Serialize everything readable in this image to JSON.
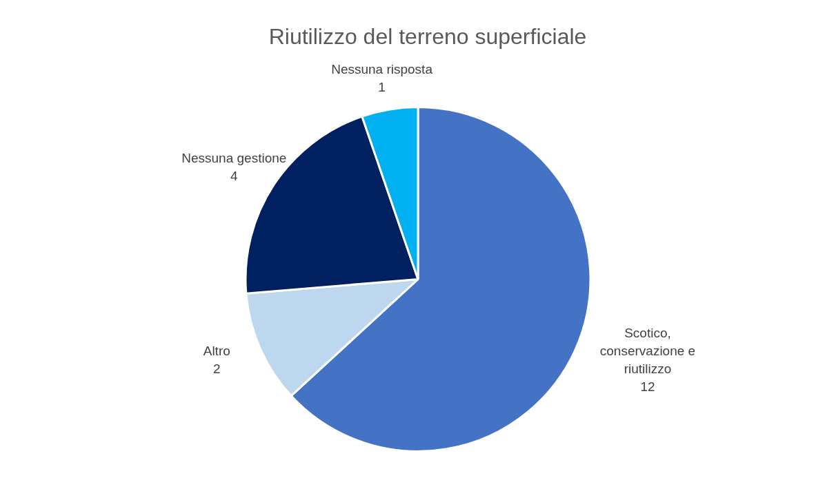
{
  "chart_data": {
    "type": "pie",
    "title": "Riutilizzo del terreno superficiale",
    "categories": [
      "Scotico, conservazione e riutilizzo",
      "Altro",
      "Nessuna gestione",
      "Nessuna risposta"
    ],
    "values": [
      12,
      2,
      4,
      1
    ],
    "colors": [
      "#4472c4",
      "#bdd7ee",
      "#002060",
      "#00b0f0"
    ],
    "data_labels": true,
    "legend": false
  }
}
